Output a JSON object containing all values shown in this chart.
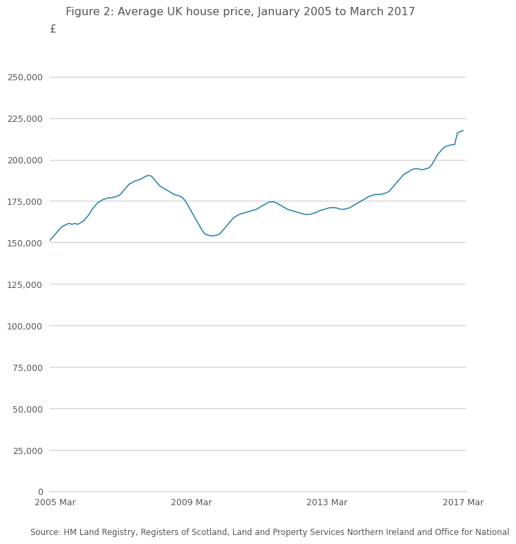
{
  "title": "Figure 2: Average UK house price, January 2005 to March 2017",
  "ylabel_symbol": "£",
  "source_text": "Source: HM Land Registry, Registers of Scotland, Land and Property Services Northern Ireland and Office for National",
  "line_color": "#2e86ab",
  "background_color": "#ffffff",
  "grid_color": "#cccccc",
  "text_color": "#555555",
  "yticks": [
    0,
    25000,
    50000,
    75000,
    100000,
    125000,
    150000,
    175000,
    200000,
    225000,
    250000
  ],
  "xtick_labels": [
    "2005 Mar",
    "2009 Mar",
    "2013 Mar",
    "2017 Mar"
  ],
  "xtick_positions": [
    2,
    50,
    98,
    146
  ],
  "ylim": [
    0,
    265000
  ],
  "xlim": [
    0,
    147
  ],
  "values": [
    151000,
    153000,
    155000,
    157000,
    159000,
    160000,
    161000,
    161500,
    161000,
    161500,
    161000,
    162000,
    163000,
    165000,
    167000,
    170000,
    172000,
    174000,
    175000,
    176000,
    176500,
    177000,
    177000,
    177500,
    178000,
    179000,
    181000,
    183000,
    185000,
    186000,
    187000,
    187500,
    188000,
    189000,
    190000,
    190500,
    190000,
    188000,
    186000,
    184000,
    183000,
    182000,
    181000,
    180000,
    179000,
    178500,
    178000,
    177000,
    175000,
    172000,
    169000,
    166000,
    163000,
    160000,
    157000,
    155000,
    154500,
    154000,
    154000,
    154500,
    155000,
    157000,
    159000,
    161000,
    163000,
    165000,
    166000,
    167000,
    167500,
    168000,
    168500,
    169000,
    169500,
    170000,
    171000,
    172000,
    173000,
    174000,
    174500,
    174500,
    174000,
    173000,
    172000,
    171000,
    170000,
    169500,
    169000,
    168500,
    168000,
    167500,
    167000,
    167000,
    167000,
    167500,
    168000,
    169000,
    169500,
    170000,
    170500,
    171000,
    171000,
    171000,
    170500,
    170000,
    170000,
    170500,
    171000,
    172000,
    173000,
    174000,
    175000,
    176000,
    177000,
    178000,
    178500,
    179000,
    179000,
    179000,
    179500,
    180000,
    181000,
    183000,
    185000,
    187000,
    189000,
    191000,
    192000,
    193000,
    194000,
    194500,
    194500,
    194000,
    194000,
    194500,
    195000,
    197000,
    200000,
    203000,
    205000,
    207000,
    208000,
    208500,
    209000,
    209000,
    216000,
    217000,
    217500
  ]
}
